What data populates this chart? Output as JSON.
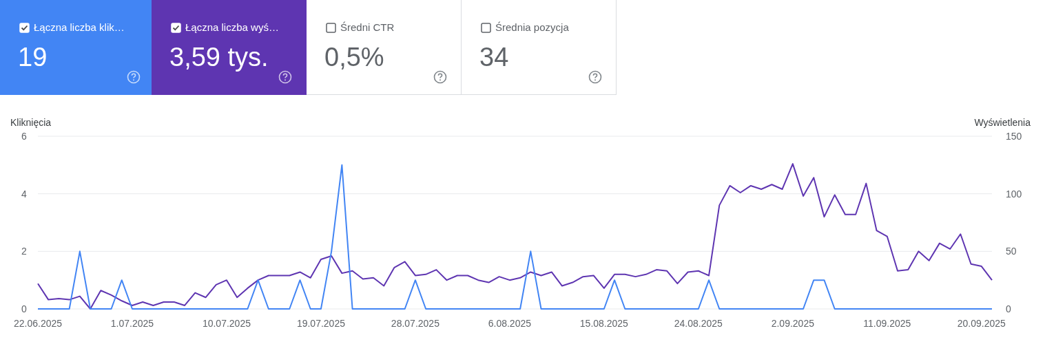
{
  "chart_data": [
    {
      "type": "other",
      "categories": [
        "Łączna liczba klik…",
        "Łączna liczba wyś…",
        "Średni CTR",
        "Średnia pozycja"
      ],
      "value_labels": [
        "19",
        "3,59 tys.",
        "0,5%",
        "34"
      ],
      "colors": [
        "#4285f4",
        "#5e35b1",
        null,
        null
      ]
    },
    {
      "type": "line",
      "ylabel": "Kliknięcia",
      "y2label": "Wyświetlenia",
      "categories": [
        "22.06.2025",
        null,
        null,
        null,
        null,
        null,
        null,
        null,
        null,
        "1.07.2025",
        null,
        null,
        null,
        null,
        null,
        null,
        null,
        null,
        "10.07.2025",
        null,
        null,
        null,
        null,
        null,
        null,
        null,
        null,
        "19.07.2025",
        null,
        null,
        null,
        null,
        null,
        null,
        null,
        null,
        "28.07.2025",
        null,
        null,
        null,
        null,
        null,
        null,
        null,
        null,
        "6.08.2025",
        null,
        null,
        null,
        null,
        null,
        null,
        null,
        null,
        "15.08.2025",
        null,
        null,
        null,
        null,
        null,
        null,
        null,
        null,
        "24.08.2025",
        null,
        null,
        null,
        null,
        null,
        null,
        null,
        null,
        "2.09.2025",
        null,
        null,
        null,
        null,
        null,
        null,
        null,
        null,
        "11.09.2025",
        null,
        null,
        null,
        null,
        null,
        null,
        null,
        null,
        "20.09.2025",
        null
      ],
      "series": [
        {
          "color": "#5e35b1",
          "axis": "y2",
          "values": [
            22,
            8,
            9,
            8,
            11,
            0,
            16,
            12,
            7,
            3,
            6,
            3,
            6,
            6,
            3,
            14,
            10,
            21,
            25,
            10,
            18,
            25,
            29,
            29,
            29,
            32,
            27,
            43,
            46,
            31,
            33,
            26,
            27,
            20,
            36,
            41,
            29,
            30,
            34,
            25,
            29,
            29,
            25,
            23,
            28,
            25,
            27,
            32,
            29,
            32,
            20,
            23,
            28,
            29,
            18,
            30,
            30,
            28,
            30,
            34,
            33,
            22,
            32,
            33,
            29,
            90,
            107,
            101,
            107,
            104,
            108,
            104,
            126,
            98,
            114,
            80,
            99,
            82,
            82,
            109,
            68,
            63,
            33,
            34,
            50,
            42,
            57,
            52,
            65,
            39,
            37,
            25
          ]
        },
        {
          "color": "#4285f4",
          "values": [
            0,
            0,
            0,
            0,
            2,
            0,
            0,
            0,
            1,
            0,
            0,
            0,
            0,
            0,
            0,
            0,
            0,
            0,
            0,
            0,
            0,
            1,
            0,
            0,
            0,
            1,
            0,
            0,
            2,
            5,
            0,
            0,
            0,
            0,
            0,
            0,
            1,
            0,
            0,
            0,
            0,
            0,
            0,
            0,
            0,
            0,
            0,
            2,
            0,
            0,
            0,
            0,
            0,
            0,
            0,
            1,
            0,
            0,
            0,
            0,
            0,
            0,
            0,
            0,
            1,
            0,
            0,
            0,
            0,
            0,
            0,
            0,
            0,
            0,
            1,
            1,
            0,
            0,
            0,
            0,
            0,
            0,
            0,
            0,
            0,
            0,
            0,
            0,
            0,
            0,
            0,
            0
          ]
        }
      ],
      "ylim": [
        0,
        6
      ],
      "yticks": [
        0,
        2,
        4,
        6
      ],
      "y2lim": [
        0,
        150
      ],
      "y2ticks": [
        0,
        50,
        100,
        150
      ],
      "grid": "y",
      "marker": "none",
      "line_style": "solid"
    }
  ]
}
